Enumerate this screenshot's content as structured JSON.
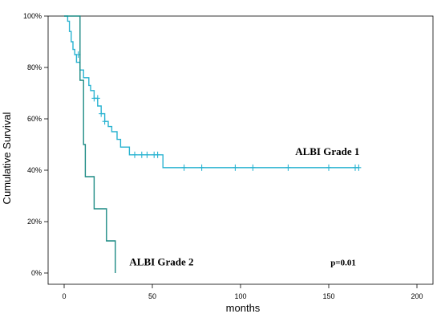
{
  "chart_data": {
    "type": "line",
    "subtype": "kaplan-meier",
    "title": "",
    "xlabel": "months",
    "ylabel": "Cumulative Survival",
    "xlim": [
      0,
      200
    ],
    "ylim": [
      0,
      100
    ],
    "x_ticks": [
      0,
      50,
      100,
      150,
      200
    ],
    "y_ticks": [
      0,
      20,
      40,
      60,
      80,
      100
    ],
    "y_tick_labels": [
      "0%",
      "20%",
      "40%",
      "60%",
      "80%",
      "100%"
    ],
    "grid": false,
    "legend": "none",
    "series": [
      {
        "name": "ALBI Grade 1",
        "color": "#29b3d1",
        "steps": [
          [
            0,
            100
          ],
          [
            2,
            98
          ],
          [
            3,
            94
          ],
          [
            4,
            90
          ],
          [
            5,
            87
          ],
          [
            6,
            85
          ],
          [
            7,
            82
          ],
          [
            9,
            79
          ],
          [
            11,
            76
          ],
          [
            14,
            73
          ],
          [
            15,
            71
          ],
          [
            17,
            68
          ],
          [
            19,
            65
          ],
          [
            21,
            62
          ],
          [
            23,
            59
          ],
          [
            25,
            57
          ],
          [
            27,
            55
          ],
          [
            30,
            52
          ],
          [
            32,
            49
          ],
          [
            37,
            46
          ],
          [
            56,
            41
          ],
          [
            167,
            41
          ]
        ],
        "censored": [
          [
            8,
            85
          ],
          [
            17,
            68
          ],
          [
            19,
            68
          ],
          [
            21,
            62
          ],
          [
            23,
            59
          ],
          [
            40,
            46
          ],
          [
            44,
            46
          ],
          [
            47,
            46
          ],
          [
            51,
            46
          ],
          [
            53,
            46
          ],
          [
            68,
            41
          ],
          [
            78,
            41
          ],
          [
            97,
            41
          ],
          [
            107,
            41
          ],
          [
            127,
            41
          ],
          [
            150,
            41
          ],
          [
            165,
            41
          ],
          [
            167,
            41
          ]
        ]
      },
      {
        "name": "ALBI Grade 2",
        "color": "#1c8a84",
        "steps": [
          [
            0,
            100
          ],
          [
            9,
            100
          ],
          [
            9,
            75
          ],
          [
            11,
            75
          ],
          [
            11,
            50
          ],
          [
            12,
            50
          ],
          [
            12,
            37.5
          ],
          [
            17,
            37.5
          ],
          [
            17,
            25
          ],
          [
            24,
            25
          ],
          [
            24,
            12.5
          ],
          [
            29,
            12.5
          ],
          [
            29,
            0
          ]
        ],
        "censored": []
      }
    ],
    "annotations": [
      {
        "text": "ALBI Grade 1",
        "x": 131,
        "y": 46,
        "size": 13
      },
      {
        "text": "ALBI Grade 2",
        "x": 37,
        "y": 3,
        "size": 13
      },
      {
        "text": "p=0.01",
        "x": 151,
        "y": 3,
        "size": 11
      }
    ]
  }
}
